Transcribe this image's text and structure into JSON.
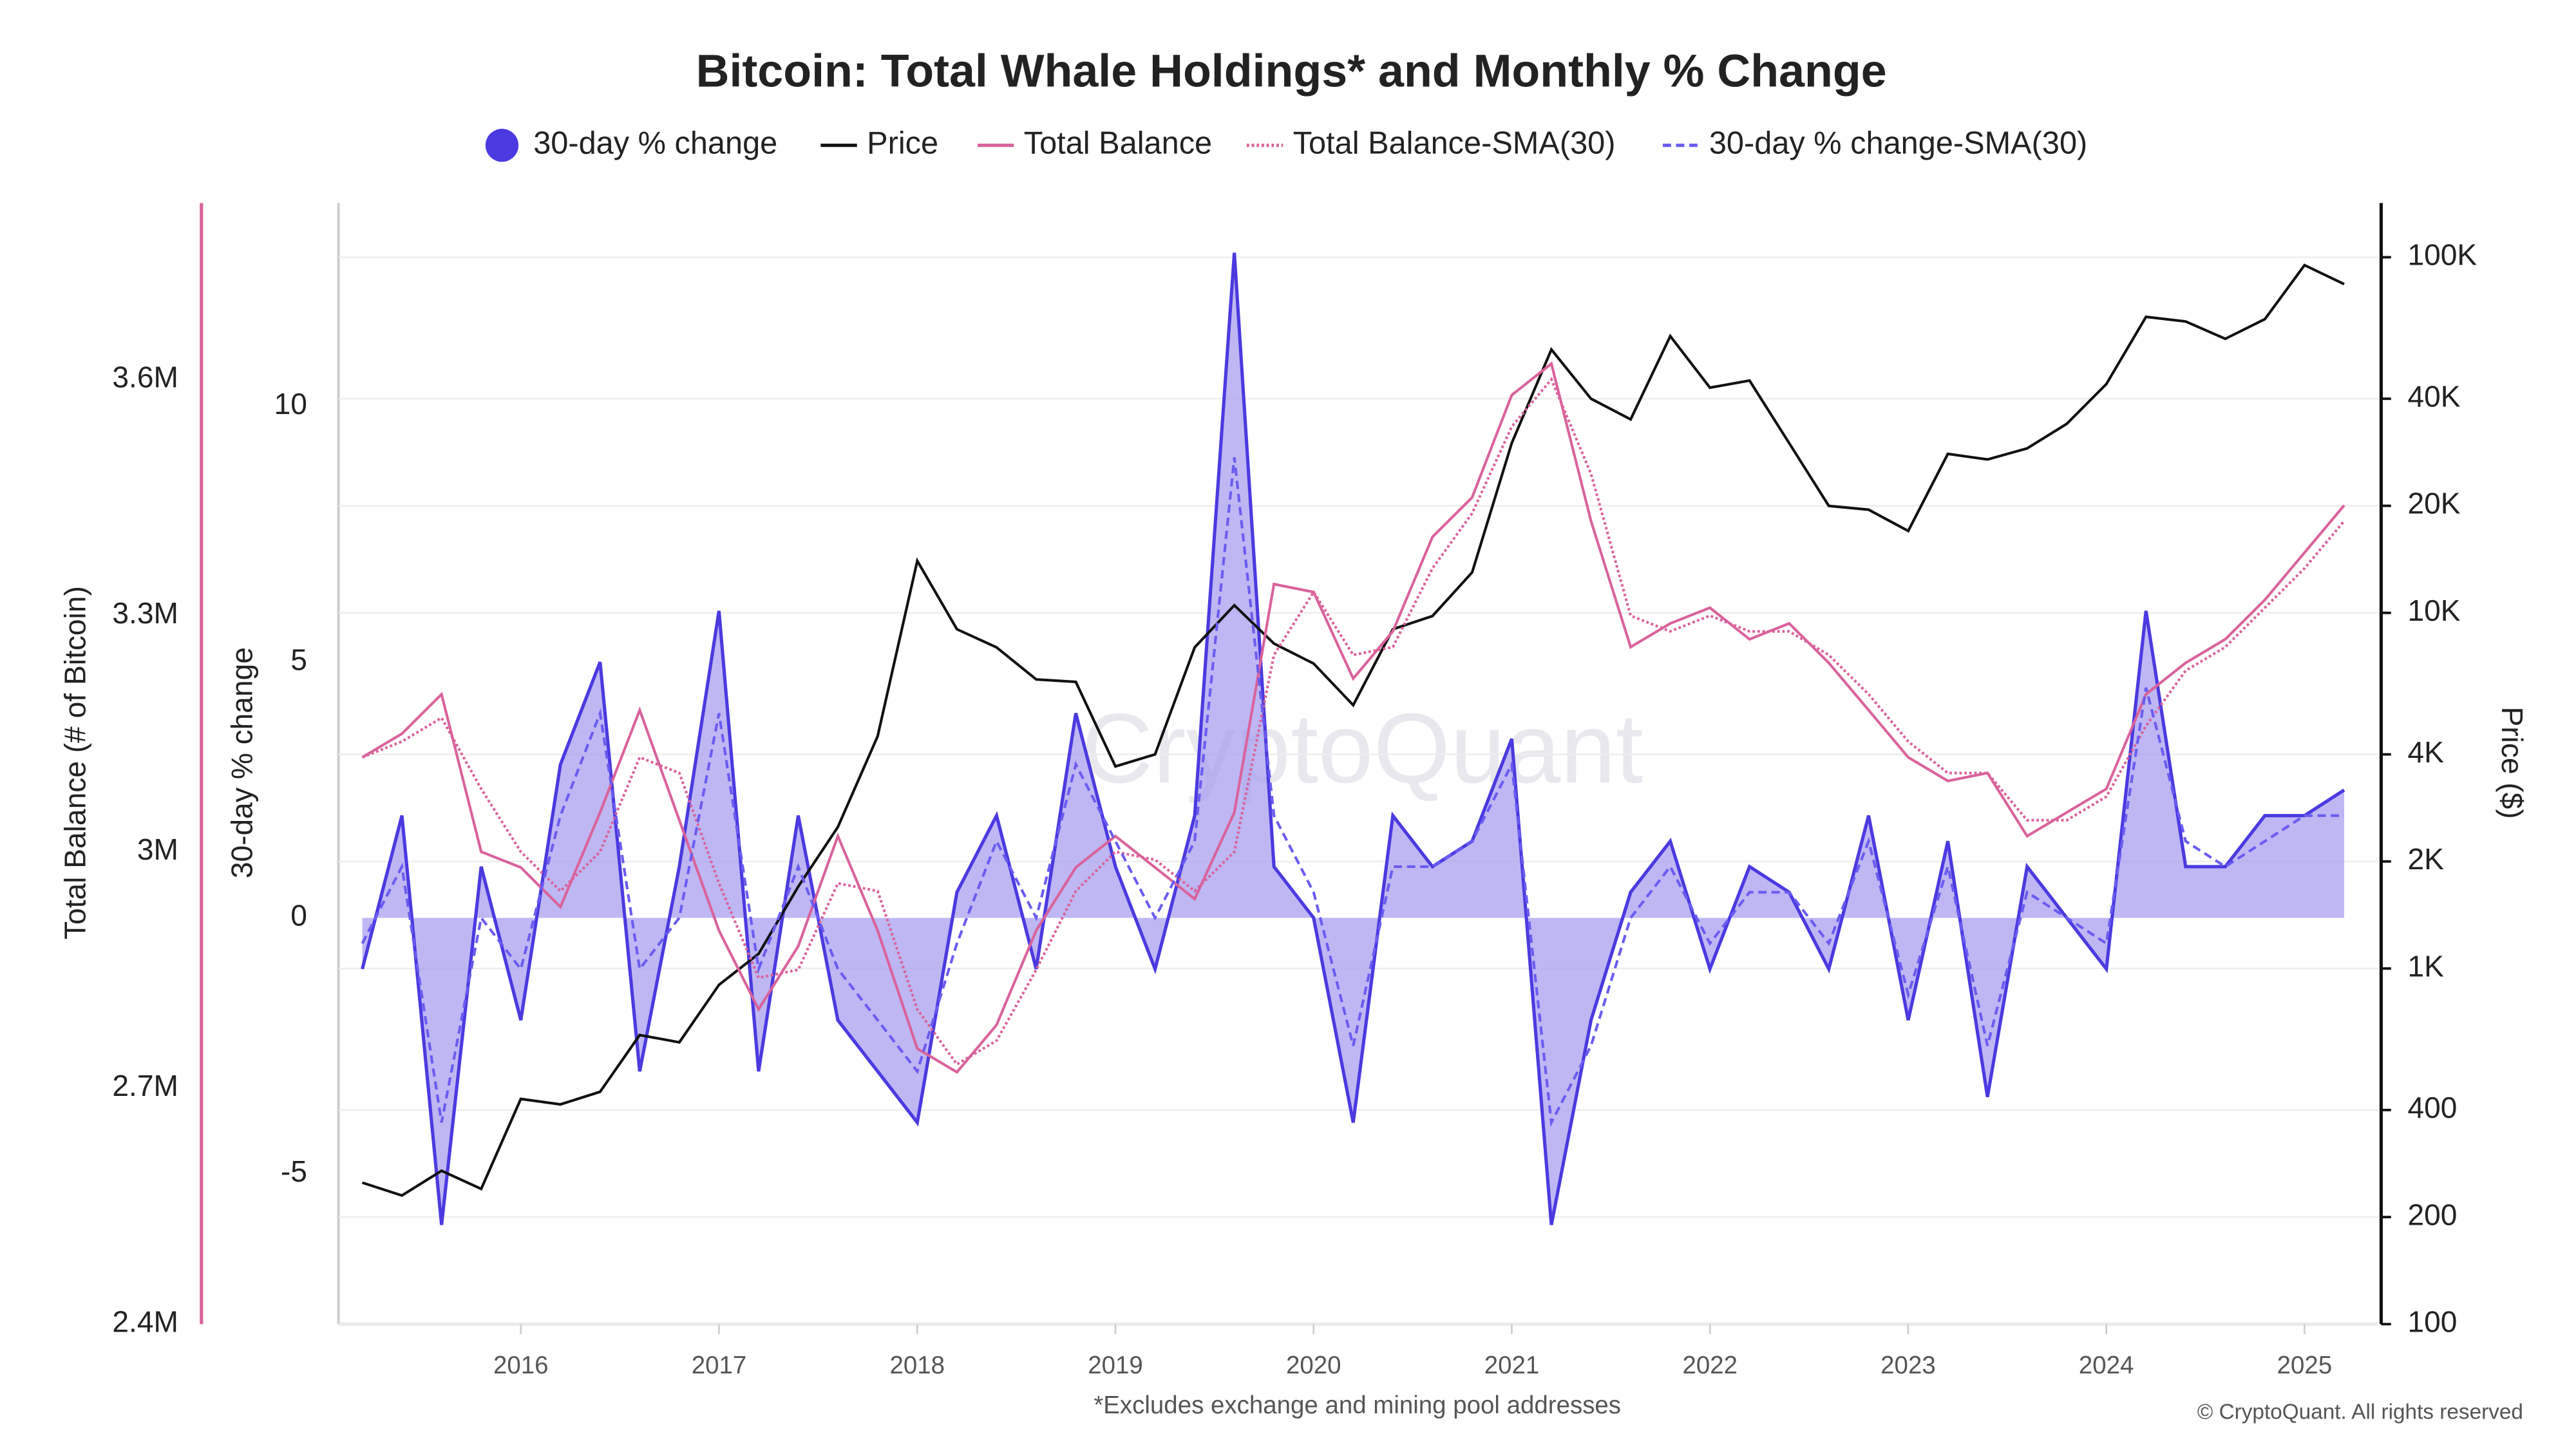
{
  "chart_data": {
    "type": "line",
    "title": "Bitcoin: Total Whale Holdings* and Monthly % Change",
    "footnote": "*Excludes exchange and mining pool addresses",
    "credit": "© CryptoQuant. All rights reserved",
    "watermark": "CryptoQuant",
    "y3label": "Total Balance (# of Bitcoin)",
    "ylabel": "30-day % change",
    "y2label": "Price ($)",
    "x": [
      2015.2,
      2015.4,
      2015.6,
      2015.8,
      2016.0,
      2016.2,
      2016.4,
      2016.6,
      2016.8,
      2017.0,
      2017.2,
      2017.4,
      2017.6,
      2017.8,
      2018.0,
      2018.2,
      2018.4,
      2018.6,
      2018.8,
      2019.0,
      2019.2,
      2019.4,
      2019.6,
      2019.8,
      2020.0,
      2020.2,
      2020.4,
      2020.6,
      2020.8,
      2021.0,
      2021.2,
      2021.4,
      2021.6,
      2021.8,
      2022.0,
      2022.2,
      2022.4,
      2022.6,
      2022.8,
      2023.0,
      2023.2,
      2023.4,
      2023.6,
      2023.8,
      2024.0,
      2024.2,
      2024.4,
      2024.6,
      2024.8,
      2025.0,
      2025.2
    ],
    "xlim": [
      2015.08,
      2025.37
    ],
    "xticks": [
      2016,
      2017,
      2018,
      2019,
      2020,
      2021,
      2022,
      2023,
      2024,
      2025
    ],
    "ylim": [
      -7.94,
      13.97
    ],
    "yticks": [
      -5,
      0,
      5,
      10
    ],
    "y2lim": [
      100,
      142000
    ],
    "y2scale": "log",
    "y2ticks": [
      {
        "value": 100,
        "label": "100"
      },
      {
        "value": 200,
        "label": "200"
      },
      {
        "value": 400,
        "label": "400"
      },
      {
        "value": 1000,
        "label": "1K"
      },
      {
        "value": 2000,
        "label": "2K"
      },
      {
        "value": 4000,
        "label": "4K"
      },
      {
        "value": 10000,
        "label": "10K"
      },
      {
        "value": 20000,
        "label": "20K"
      },
      {
        "value": 40000,
        "label": "40K"
      },
      {
        "value": 100000,
        "label": "100K"
      }
    ],
    "y3lim": [
      2400000,
      3824000
    ],
    "y3ticks": [
      {
        "value": 2400000,
        "label": "2.4M"
      },
      {
        "value": 2700000,
        "label": "2.7M"
      },
      {
        "value": 3000000,
        "label": "3M"
      },
      {
        "value": 3300000,
        "label": "3.3M"
      },
      {
        "value": 3600000,
        "label": "3.6M"
      }
    ],
    "grid": true,
    "series": [
      {
        "name": "30-day % change",
        "color": "#4b3ae0",
        "fill": "#a89ff0",
        "axis": "y",
        "style": "area",
        "marker": "circle",
        "values": [
          -1,
          2,
          -6,
          1,
          -2,
          3,
          5,
          -3,
          1,
          6,
          -3,
          2,
          -2,
          -3,
          -4,
          0.5,
          2,
          -1,
          4,
          1,
          -1,
          2,
          13,
          1,
          0,
          -4,
          2,
          1,
          1.5,
          3.5,
          -6,
          -2,
          0.5,
          1.5,
          -1,
          1,
          0.5,
          -1,
          2,
          -2,
          1.5,
          -3.5,
          1,
          0,
          -1,
          6,
          1,
          1,
          2,
          2,
          2.5
        ]
      },
      {
        "name": "Price",
        "color": "#111111",
        "axis": "y2",
        "style": "solid",
        "values": [
          250,
          230,
          270,
          240,
          430,
          415,
          450,
          650,
          620,
          900,
          1100,
          1700,
          2500,
          4500,
          14000,
          9000,
          8000,
          6500,
          6400,
          3700,
          4000,
          8000,
          10500,
          8200,
          7200,
          5500,
          9000,
          9800,
          13000,
          30000,
          55000,
          40000,
          35000,
          60000,
          43000,
          45000,
          30000,
          20000,
          19500,
          17000,
          28000,
          27000,
          29000,
          34000,
          44000,
          68000,
          66000,
          59000,
          67000,
          95000,
          84000
        ]
      },
      {
        "name": "Total Balance",
        "color": "#d9629b",
        "axis": "y3",
        "style": "solid",
        "values": [
          3120000,
          3150000,
          3200000,
          3000000,
          2980000,
          2930000,
          3050000,
          3180000,
          3040000,
          2900000,
          2800000,
          2880000,
          3020000,
          2900000,
          2750000,
          2720000,
          2780000,
          2900000,
          2980000,
          3020000,
          2980000,
          2940000,
          3050000,
          3340000,
          3330000,
          3220000,
          3280000,
          3400000,
          3450000,
          3580000,
          3620000,
          3420000,
          3260000,
          3290000,
          3310000,
          3270000,
          3290000,
          3240000,
          3180000,
          3120000,
          3090000,
          3100000,
          3020000,
          3050000,
          3080000,
          3200000,
          3240000,
          3270000,
          3320000,
          3380000,
          3440000
        ]
      },
      {
        "name": "Total Balance-SMA(30)",
        "color": "#d9629b",
        "axis": "y3",
        "style": "dotted",
        "values": [
          3120000,
          3140000,
          3170000,
          3080000,
          3000000,
          2950000,
          3000000,
          3120000,
          3100000,
          2960000,
          2840000,
          2850000,
          2960000,
          2950000,
          2800000,
          2730000,
          2760000,
          2850000,
          2950000,
          3000000,
          2990000,
          2950000,
          3000000,
          3250000,
          3330000,
          3250000,
          3260000,
          3360000,
          3430000,
          3540000,
          3600000,
          3480000,
          3300000,
          3280000,
          3300000,
          3280000,
          3280000,
          3250000,
          3200000,
          3140000,
          3100000,
          3100000,
          3040000,
          3040000,
          3070000,
          3160000,
          3230000,
          3260000,
          3310000,
          3360000,
          3420000
        ]
      },
      {
        "name": "30-day % change-SMA(30)",
        "color": "#6a5cf0",
        "axis": "y",
        "style": "dashed",
        "values": [
          -0.5,
          1,
          -4,
          0,
          -1,
          2,
          4,
          -1,
          0,
          4,
          -1,
          1,
          -1,
          -2,
          -3,
          -0.5,
          1.5,
          0,
          3,
          1.5,
          0,
          1.5,
          9,
          2,
          0.5,
          -2.5,
          1,
          1,
          1.5,
          3,
          -4,
          -2.5,
          0,
          1,
          -0.5,
          0.5,
          0.5,
          -0.5,
          1.5,
          -1.5,
          1,
          -2.5,
          0.5,
          0,
          -0.5,
          4.5,
          1.5,
          1,
          1.5,
          2,
          2
        ]
      }
    ]
  }
}
